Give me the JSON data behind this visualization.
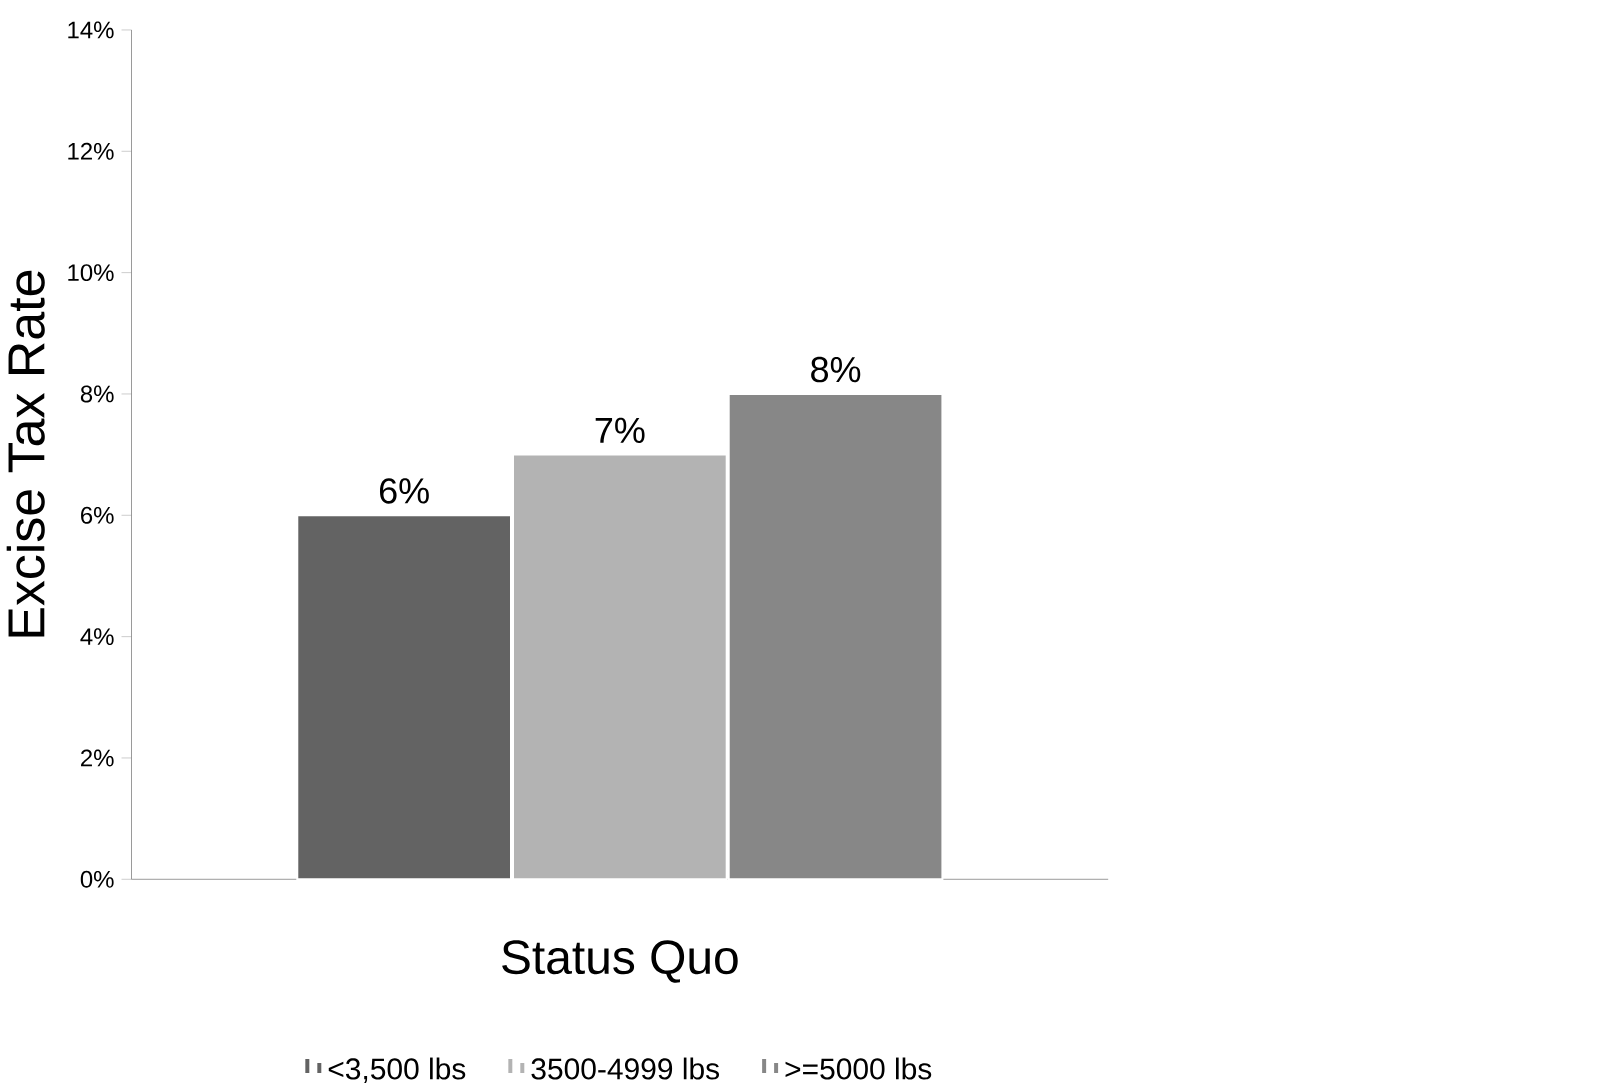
{
  "chart_data": {
    "type": "bar",
    "ylabel": "Excise Tax Rate",
    "categories": [
      "Status Quo"
    ],
    "series": [
      {
        "name": "<3,500 lbs",
        "color": "#636363",
        "values": [
          6
        ],
        "value_labels": [
          "6%"
        ]
      },
      {
        "name": "3500-4999 lbs",
        "color": "#b3b3b3",
        "values": [
          7
        ],
        "value_labels": [
          "7%"
        ]
      },
      {
        "name": ">=5000 lbs",
        "color": "#878787",
        "values": [
          8
        ],
        "value_labels": [
          "8%"
        ]
      }
    ],
    "ylim": [
      0,
      14
    ],
    "yticks": [
      {
        "value": 0,
        "label": "0%"
      },
      {
        "value": 2,
        "label": "2%"
      },
      {
        "value": 4,
        "label": "4%"
      },
      {
        "value": 6,
        "label": "6%"
      },
      {
        "value": 8,
        "label": "8%"
      },
      {
        "value": 10,
        "label": "10%"
      },
      {
        "value": 12,
        "label": "12%"
      },
      {
        "value": 14,
        "label": "14%"
      }
    ],
    "legend": "bottom"
  }
}
